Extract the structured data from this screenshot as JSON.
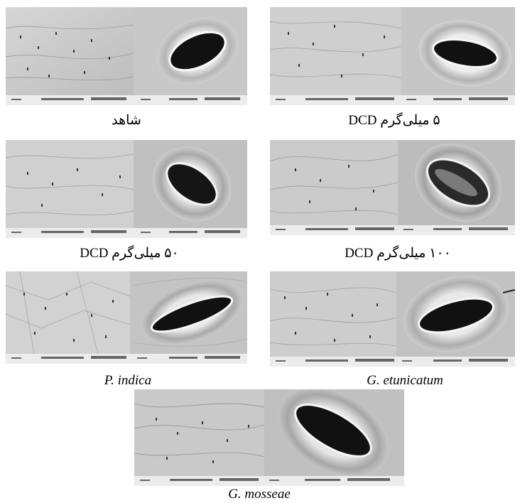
{
  "figure": {
    "panels": [
      {
        "id": "control",
        "caption": "شاهد",
        "italic": false,
        "rtl": true
      },
      {
        "id": "dcd5",
        "caption": "۵ میلی‌گرم DCD",
        "italic": false,
        "rtl": true
      },
      {
        "id": "dcd50",
        "caption": "۵۰ میلی‌گرم DCD",
        "italic": false,
        "rtl": true
      },
      {
        "id": "dcd100",
        "caption": "۱۰۰ میلی‌گرم DCD",
        "italic": false,
        "rtl": true
      },
      {
        "id": "pindica",
        "caption": "P. indica",
        "italic": true,
        "rtl": false
      },
      {
        "id": "getunicatum",
        "caption": "G. etunicatum",
        "italic": true,
        "rtl": false
      },
      {
        "id": "gmosseae",
        "caption": "G. mosseae",
        "italic": true,
        "rtl": false
      }
    ]
  }
}
